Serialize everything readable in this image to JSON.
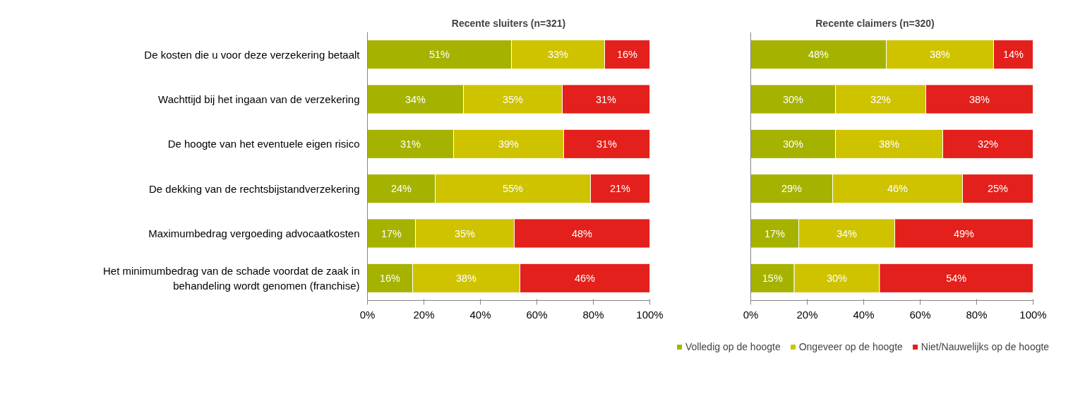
{
  "chart_data": [
    {
      "type": "bar",
      "orientation": "horizontal",
      "stacked": true,
      "title": "Recente sluiters (n=321)",
      "categories": [
        "De kosten die u voor deze verzekering betaalt",
        "Wachttijd bij het ingaan van de verzekering",
        "De hoogte van het eventuele eigen risico",
        "De dekking van de rechtsbijstandverzekering",
        "Maximumbedrag vergoeding advocaatkosten",
        "Het minimumbedrag van de schade voordat de zaak in behandeling wordt genomen (franchise)"
      ],
      "series": [
        {
          "color": "#a5b300",
          "values": [
            51,
            34,
            30.5,
            24,
            17,
            16
          ],
          "value_labels": [
            "51%",
            "34%",
            "31%",
            "24%",
            "17%",
            "16%"
          ]
        },
        {
          "color": "#cfc300",
          "values": [
            33,
            35,
            39,
            55,
            35,
            38
          ],
          "value_labels": [
            "33%",
            "35%",
            "39%",
            "55%",
            "35%",
            "38%"
          ]
        },
        {
          "color": "#e3201b",
          "values": [
            16,
            31,
            30.5,
            21,
            48,
            46
          ],
          "value_labels": [
            "16%",
            "31%",
            "31%",
            "21%",
            "48%",
            "46%"
          ]
        }
      ],
      "xlim": [
        0,
        100
      ],
      "xticks": [
        {
          "value": 0,
          "label": "0%"
        },
        {
          "value": 20,
          "label": "20%"
        },
        {
          "value": 40,
          "label": "40%"
        },
        {
          "value": 60,
          "label": "60%"
        },
        {
          "value": 80,
          "label": "80%"
        },
        {
          "value": 100,
          "label": "100%"
        }
      ],
      "grid": false
    },
    {
      "type": "bar",
      "orientation": "horizontal",
      "stacked": true,
      "title": "Recente claimers (n=320)",
      "categories": [
        "De kosten die u voor deze verzekering betaalt",
        "Wachttijd bij het ingaan van de verzekering",
        "De hoogte van het eventuele eigen risico",
        "De dekking van de rechtsbijstandverzekering",
        "Maximumbedrag vergoeding advocaatkosten",
        "Het minimumbedrag van de schade voordat de zaak in behandeling wordt genomen (franchise)"
      ],
      "series": [
        {
          "name": "Volledig op de hoogte",
          "color": "#a5b300",
          "values": [
            48,
            30,
            30,
            29,
            17,
            15.4
          ],
          "value_labels": [
            "48%",
            "30%",
            "30%",
            "29%",
            "17%",
            "15%"
          ]
        },
        {
          "name": "Ongeveer op de hoogte",
          "color": "#cfc300",
          "values": [
            38,
            32,
            38,
            46,
            34,
            30.2
          ],
          "value_labels": [
            "38%",
            "32%",
            "38%",
            "46%",
            "34%",
            "30%"
          ]
        },
        {
          "name": "Niet/Nauwelijks op de hoogte",
          "color": "#e3201b",
          "values": [
            14,
            38,
            32,
            25,
            49,
            54.4
          ],
          "value_labels": [
            "14%",
            "38%",
            "32%",
            "25%",
            "49%",
            "54%"
          ]
        }
      ],
      "xlim": [
        0,
        100
      ],
      "xticks": [
        {
          "value": 0,
          "label": "0%"
        },
        {
          "value": 20,
          "label": "20%"
        },
        {
          "value": 40,
          "label": "40%"
        },
        {
          "value": 60,
          "label": "60%"
        },
        {
          "value": 80,
          "label": "80%"
        },
        {
          "value": 100,
          "label": "100%"
        }
      ],
      "tick_labels": "x",
      "legend": "bottom",
      "grid": false
    }
  ]
}
